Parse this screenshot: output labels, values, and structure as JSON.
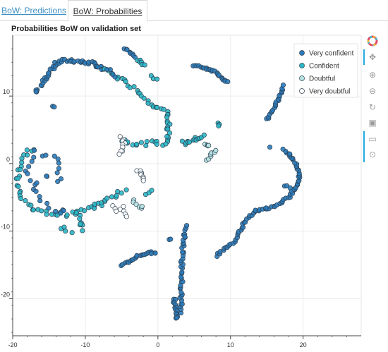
{
  "tabs": [
    {
      "label": "BoW: Predictions"
    },
    {
      "label": "BoW: Probabilities"
    }
  ],
  "toolbar": {
    "tools": [
      "bokeh-logo-icon",
      "pan-icon",
      "wheel-zoom-icon",
      "box-zoom-icon",
      "reset-icon",
      "save-icon",
      "hover-icon",
      "crosshair-icon"
    ]
  },
  "chart_data": {
    "type": "scatter",
    "title": "Probabilities BoW on validation set",
    "xlabel": "",
    "ylabel": "",
    "xlim": [
      -20,
      28
    ],
    "ylim": [
      -25.5,
      19
    ],
    "xticks": [
      -20,
      -10,
      0,
      10,
      20
    ],
    "yticks": [
      10,
      0,
      -10,
      -20
    ],
    "grid": true,
    "legend_position": "top-right",
    "series": [
      {
        "name": "Very confident",
        "color": "#2b7bba",
        "hollow": false
      },
      {
        "name": "Confident",
        "color": "#2ab7c5",
        "hollow": false
      },
      {
        "name": "Doubtful",
        "color": "#b8e6e3",
        "hollow": true
      },
      {
        "name": "Very doubtful",
        "color": "#ffffff",
        "hollow": true
      }
    ],
    "clusters": [
      {
        "series": 0,
        "pts": [
          [
            -16,
            11.5
          ],
          [
            -15.5,
            12.5
          ],
          [
            -15,
            13.5
          ],
          [
            -14.5,
            14.2
          ],
          [
            -14,
            14.8
          ],
          [
            -13,
            15.2
          ],
          [
            -12,
            15.3
          ],
          [
            -11,
            15.1
          ],
          [
            -10,
            15
          ],
          [
            -9,
            14.8
          ],
          [
            -8,
            14.3
          ],
          [
            -7.5,
            14
          ]
        ],
        "n": 46,
        "sp": 0.25
      },
      {
        "series": 1,
        "pts": [
          [
            -7.5,
            14
          ],
          [
            -5,
            12.5
          ],
          [
            -3,
            11
          ],
          [
            -1.5,
            9.5
          ],
          [
            -0.5,
            8.5
          ],
          [
            0.5,
            8
          ],
          [
            1.5,
            7.5
          ],
          [
            1.5,
            6.5
          ]
        ],
        "n": 30,
        "sp": 0.25
      },
      {
        "series": 0,
        "pts": [
          [
            -16.5,
            11
          ],
          [
            -16.8,
            10.5
          ]
        ],
        "n": 4,
        "sp": 0.2
      },
      {
        "series": 0,
        "pts": [
          [
            -14.5,
            8.5
          ],
          [
            -14.2,
            8.3
          ]
        ],
        "n": 2,
        "sp": 0.1
      },
      {
        "series": 0,
        "pts": [
          [
            -4.7,
            17
          ],
          [
            -4,
            16.5
          ],
          [
            -3.2,
            15.6
          ]
        ],
        "n": 8,
        "sp": 0.2
      },
      {
        "series": 1,
        "pts": [
          [
            -2.8,
            15.5
          ],
          [
            -2.5,
            15
          ],
          [
            -2,
            14.5
          ]
        ],
        "n": 6,
        "sp": 0.25
      },
      {
        "series": 0,
        "pts": [
          [
            -6.8,
            14
          ],
          [
            -6,
            13
          ]
        ],
        "n": 4,
        "sp": 0.25
      },
      {
        "series": 1,
        "pts": [
          [
            -0.8,
            13
          ],
          [
            -0.3,
            12.5
          ]
        ],
        "n": 3,
        "sp": 0.2
      },
      {
        "series": 0,
        "pts": [
          [
            5,
            14.5
          ],
          [
            6,
            14.3
          ],
          [
            7,
            14
          ],
          [
            8,
            13.6
          ],
          [
            9,
            12.5
          ],
          [
            9.5,
            12
          ]
        ],
        "n": 24,
        "sp": 0.15
      },
      {
        "series": 0,
        "pts": [
          [
            15,
            6.5
          ],
          [
            15.5,
            7.2
          ],
          [
            16,
            8.3
          ],
          [
            16.5,
            9.3
          ],
          [
            17,
            10.5
          ],
          [
            17.3,
            11.5
          ]
        ],
        "n": 20,
        "sp": 0.15
      },
      {
        "series": 1,
        "pts": [
          [
            1.2,
            7
          ],
          [
            1.5,
            5.5
          ],
          [
            1.4,
            4
          ],
          [
            1.3,
            3
          ]
        ],
        "n": 12,
        "sp": 0.3
      },
      {
        "series": 1,
        "pts": [
          [
            -5,
            3.5
          ],
          [
            -3,
            3
          ],
          [
            -1,
            3
          ],
          [
            1,
            3
          ]
        ],
        "n": 16,
        "sp": 0.35
      },
      {
        "series": 1,
        "pts": [
          [
            3.5,
            3
          ],
          [
            4.5,
            3.3
          ],
          [
            5.5,
            3.7
          ],
          [
            6.5,
            4
          ]
        ],
        "n": 14,
        "sp": 0.35
      },
      {
        "series": 1,
        "pts": [
          [
            8.3,
            6
          ],
          [
            8.4,
            5.5
          ]
        ],
        "n": 3,
        "sp": 0.15
      },
      {
        "series": 2,
        "pts": [
          [
            6.5,
            3
          ],
          [
            7,
            2.5
          ]
        ],
        "n": 4,
        "sp": 0.25
      },
      {
        "series": 2,
        "pts": [
          [
            6.8,
            0.5
          ],
          [
            7.2,
            1
          ],
          [
            7.5,
            1.6
          ],
          [
            8,
            2
          ]
        ],
        "n": 7,
        "sp": 0.15
      },
      {
        "series": 3,
        "pts": [
          [
            -5,
            4
          ],
          [
            -4.5,
            3
          ],
          [
            -5,
            2
          ],
          [
            -5.5,
            1.5
          ]
        ],
        "n": 9,
        "sp": 0.2
      },
      {
        "series": 3,
        "pts": [
          [
            -2.8,
            -1
          ],
          [
            -2.3,
            -1.5
          ],
          [
            -2,
            -2.2
          ],
          [
            -1.8,
            -2.5
          ]
        ],
        "n": 8,
        "sp": 0.25
      },
      {
        "series": 1,
        "pts": [
          [
            -17,
            2.3
          ],
          [
            -18,
            1.5
          ],
          [
            -19,
            0
          ],
          [
            -19.2,
            -2
          ],
          [
            -19,
            -4
          ],
          [
            -18.5,
            -5.5
          ],
          [
            -17.5,
            -6.5
          ],
          [
            -16,
            -7.2
          ],
          [
            -14,
            -7.5
          ],
          [
            -12,
            -7.5
          ],
          [
            -10,
            -6.8
          ],
          [
            -8,
            -6
          ]
        ],
        "n": 44,
        "sp": 0.3
      },
      {
        "series": 0,
        "pts": [
          [
            -17,
            2
          ],
          [
            -17,
            1
          ],
          [
            -18,
            -1
          ],
          [
            -16.5,
            -4
          ],
          [
            -15.5,
            -6.5
          ],
          [
            -13,
            -7
          ],
          [
            -12,
            -6.8
          ]
        ],
        "n": 18,
        "sp": 0.45
      },
      {
        "series": 0,
        "pts": [
          [
            -16,
            1
          ],
          [
            -15,
            1
          ],
          [
            -13.5,
            0.5
          ],
          [
            -14,
            -1
          ],
          [
            -13.5,
            -2.5
          ],
          [
            -15,
            -2
          ],
          [
            -16.5,
            -2.5
          ]
        ],
        "n": 12,
        "sp": 0.4
      },
      {
        "series": 1,
        "pts": [
          [
            -13.5,
            -9.5
          ],
          [
            -12,
            -10
          ]
        ],
        "n": 4,
        "sp": 0.3
      },
      {
        "series": 1,
        "pts": [
          [
            -11,
            -7.5
          ],
          [
            -10.5,
            -9
          ],
          [
            -10.5,
            -10
          ]
        ],
        "n": 8,
        "sp": 0.3
      },
      {
        "series": 1,
        "pts": [
          [
            -8.5,
            -6.5
          ],
          [
            -7,
            -5
          ],
          [
            -5.5,
            -4.5
          ],
          [
            -4,
            -4
          ]
        ],
        "n": 12,
        "sp": 0.35
      },
      {
        "series": 3,
        "pts": [
          [
            -6.5,
            -6
          ],
          [
            -5.5,
            -7
          ],
          [
            -4.5,
            -6.5
          ],
          [
            -4.5,
            -8
          ]
        ],
        "n": 8,
        "sp": 0.3
      },
      {
        "series": 2,
        "pts": [
          [
            -3.5,
            -5.5
          ],
          [
            -3,
            -6
          ],
          [
            -2.5,
            -7
          ],
          [
            -2,
            -6.5
          ]
        ],
        "n": 6,
        "sp": 0.3
      },
      {
        "series": 1,
        "pts": [
          [
            -1.5,
            -4.5
          ],
          [
            -1,
            -4
          ]
        ],
        "n": 3,
        "sp": 0.2
      },
      {
        "series": 0,
        "pts": [
          [
            -5,
            -15
          ],
          [
            -4,
            -14.5
          ],
          [
            -3,
            -13.8
          ],
          [
            -2,
            -13.4
          ],
          [
            -1,
            -13.2
          ],
          [
            0,
            -13.1
          ]
        ],
        "n": 22,
        "sp": 0.15
      },
      {
        "series": 0,
        "pts": [
          [
            2.2,
            -20
          ],
          [
            2.6,
            -22
          ],
          [
            2.7,
            -23
          ]
        ],
        "n": 14,
        "sp": 0.2
      },
      {
        "series": 0,
        "pts": [
          [
            3.2,
            -22
          ],
          [
            3.2,
            -19
          ],
          [
            3.3,
            -16
          ],
          [
            3.4,
            -13
          ],
          [
            3.6,
            -11
          ],
          [
            4,
            -9
          ]
        ],
        "n": 40,
        "sp": 0.18
      },
      {
        "series": 0,
        "pts": [
          [
            1.5,
            -11.3
          ],
          [
            1.8,
            -11.2
          ]
        ],
        "n": 2,
        "sp": 0.1
      },
      {
        "series": 0,
        "pts": [
          [
            8,
            -13.6
          ],
          [
            9.5,
            -12.5
          ],
          [
            10.5,
            -11.5
          ],
          [
            11.5,
            -9.5
          ],
          [
            12.5,
            -8
          ],
          [
            13.5,
            -7
          ],
          [
            15,
            -6.6
          ],
          [
            16.5,
            -6.3
          ]
        ],
        "n": 40,
        "sp": 0.15
      },
      {
        "series": 0,
        "pts": [
          [
            16.5,
            -6
          ],
          [
            18,
            -5
          ],
          [
            19,
            -3.5
          ],
          [
            19.5,
            -2
          ],
          [
            19,
            0
          ],
          [
            18,
            1.5
          ],
          [
            17.5,
            2
          ]
        ],
        "n": 36,
        "sp": 0.15
      },
      {
        "series": 0,
        "pts": [
          [
            15.5,
            2.5
          ],
          [
            17.3,
            2.2
          ]
        ],
        "n": 2,
        "sp": 0.1
      },
      {
        "series": 0,
        "pts": [
          [
            17.5,
            -3.2
          ],
          [
            18.2,
            -3.6
          ]
        ],
        "n": 3,
        "sp": 0.15
      }
    ]
  }
}
